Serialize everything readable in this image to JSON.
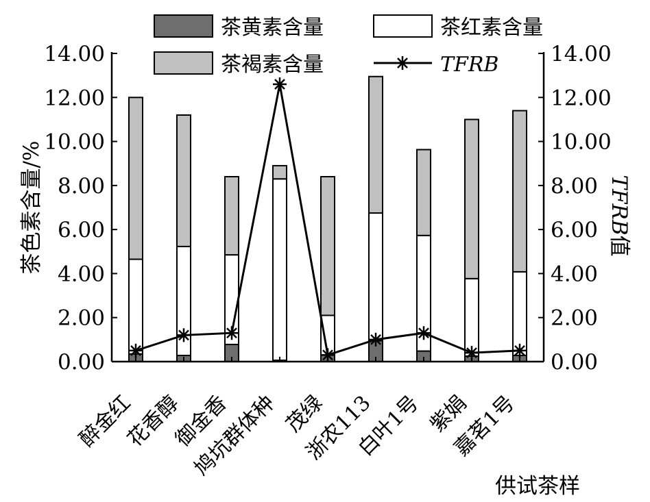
{
  "chart_data": {
    "type": "bar",
    "stacked": true,
    "title": "",
    "xlabel": "供试茶样",
    "ylabel": "茶色素含量/%",
    "y2label": "TFRB值",
    "ylim": [
      0,
      14
    ],
    "y2lim": [
      0,
      14
    ],
    "yticks": [
      "0.00",
      "2.00",
      "4.00",
      "6.00",
      "8.00",
      "10.00",
      "12.00",
      "14.00"
    ],
    "categories": [
      "醉金红",
      "花香醇",
      "御金香",
      "鸠坑群体种",
      "茂绿",
      "浙农113",
      "白叶1号",
      "紫娟",
      "嘉茗1号"
    ],
    "series": [
      {
        "name": "茶黄素含量",
        "type": "bar",
        "axis": "left",
        "color": "#6e6e6e",
        "values": [
          0.35,
          0.28,
          0.78,
          0.06,
          0.3,
          0.95,
          0.48,
          0.25,
          0.28
        ]
      },
      {
        "name": "茶红素含量",
        "type": "bar",
        "axis": "left",
        "color": "#ffffff",
        "values": [
          4.3,
          4.95,
          4.07,
          8.24,
          1.8,
          5.8,
          5.25,
          3.52,
          3.8
        ]
      },
      {
        "name": "茶褐素含量",
        "type": "bar",
        "axis": "left",
        "color": "#c0c0c0",
        "values": [
          7.35,
          5.97,
          3.55,
          0.6,
          6.3,
          6.2,
          3.9,
          7.23,
          7.32
        ]
      },
      {
        "name": "TFRB",
        "type": "line",
        "axis": "right",
        "color": "#000000",
        "marker": "asterisk",
        "values": [
          0.5,
          1.2,
          1.3,
          12.6,
          0.3,
          1.0,
          1.3,
          0.4,
          0.5
        ]
      }
    ],
    "legend_position": "top",
    "grid": false
  }
}
